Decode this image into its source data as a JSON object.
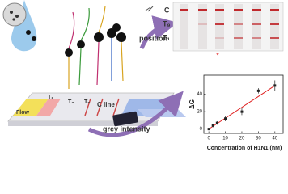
{
  "labels": {
    "position": "position",
    "grey_intensity": "grey intensity",
    "flow": "Flow",
    "t1": "T₁",
    "t3": "T₃",
    "t9": "T₉",
    "c_line": "C line",
    "strip_c": "C",
    "strip_t9": "T₉",
    "strip_t1": "T₁",
    "marker": "*"
  },
  "chart_data": {
    "type": "scatter",
    "x_label": "Concentration of H1N1 (nM)",
    "y_label": "ΔG",
    "x": [
      0,
      2.5,
      5,
      10,
      20,
      30,
      40
    ],
    "values": [
      0,
      4,
      7,
      12,
      20,
      44,
      50
    ],
    "errors": [
      1,
      2,
      2,
      3,
      4,
      3,
      6
    ],
    "color": "#222222",
    "xlim": [
      -3,
      45
    ],
    "ylim": [
      -5,
      62
    ],
    "xticks": [
      0,
      10,
      20,
      30,
      40
    ],
    "yticks": [
      0,
      20,
      40
    ]
  }
}
